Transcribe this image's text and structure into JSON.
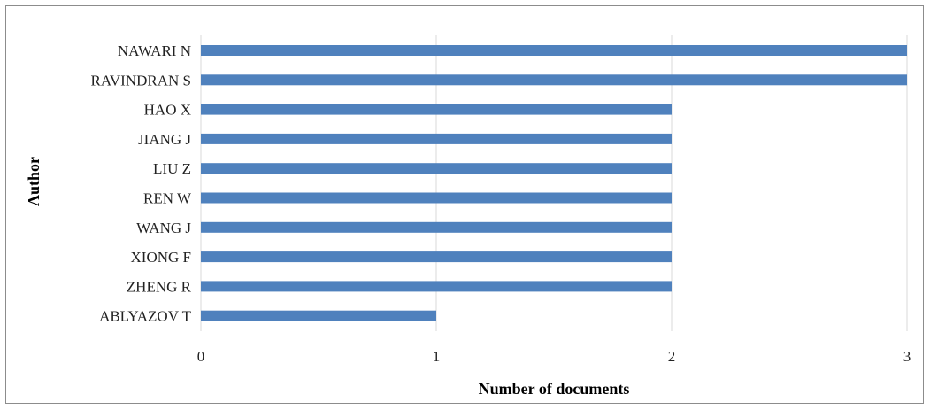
{
  "chart_data": {
    "type": "bar",
    "orientation": "horizontal",
    "title": "",
    "xlabel": "Number of documents",
    "ylabel": "Author",
    "categories": [
      "NAWARI N",
      "RAVINDRAN S",
      "HAO X",
      "JIANG J",
      "LIU Z",
      "REN W",
      "WANG J",
      "XIONG F",
      "ZHENG R",
      "ABLYAZOV T"
    ],
    "values": [
      3,
      3,
      2,
      2,
      2,
      2,
      2,
      2,
      2,
      1
    ],
    "xlim": [
      0,
      3
    ],
    "xticks": [
      "0",
      "1",
      "2",
      "3"
    ],
    "grid": "vertical",
    "legend": "none",
    "bar_color": "#4f81bd",
    "grid_color": "#d9d9d9"
  }
}
